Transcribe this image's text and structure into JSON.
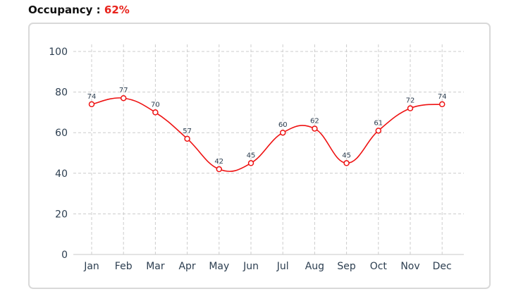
{
  "header": {
    "label": "Occupancy :",
    "value": "62%"
  },
  "colors": {
    "accent": "#e8231c",
    "line": "#ee1111",
    "grid": "#cccccc",
    "text": "#2c3e50"
  },
  "chart_data": {
    "type": "line",
    "title": "",
    "xlabel": "",
    "ylabel": "",
    "categories": [
      "Jan",
      "Feb",
      "Mar",
      "Apr",
      "May",
      "Jun",
      "Jul",
      "Aug",
      "Sep",
      "Oct",
      "Nov",
      "Dec"
    ],
    "series": [
      {
        "values": [
          74,
          77,
          70,
          57,
          42,
          45,
          60,
          62,
          45,
          61,
          72,
          74
        ]
      }
    ],
    "ylim": [
      0,
      100
    ],
    "yticks": [
      0,
      20,
      40,
      60,
      80,
      100
    ],
    "grid": true,
    "smooth": true,
    "data_labels": true
  }
}
